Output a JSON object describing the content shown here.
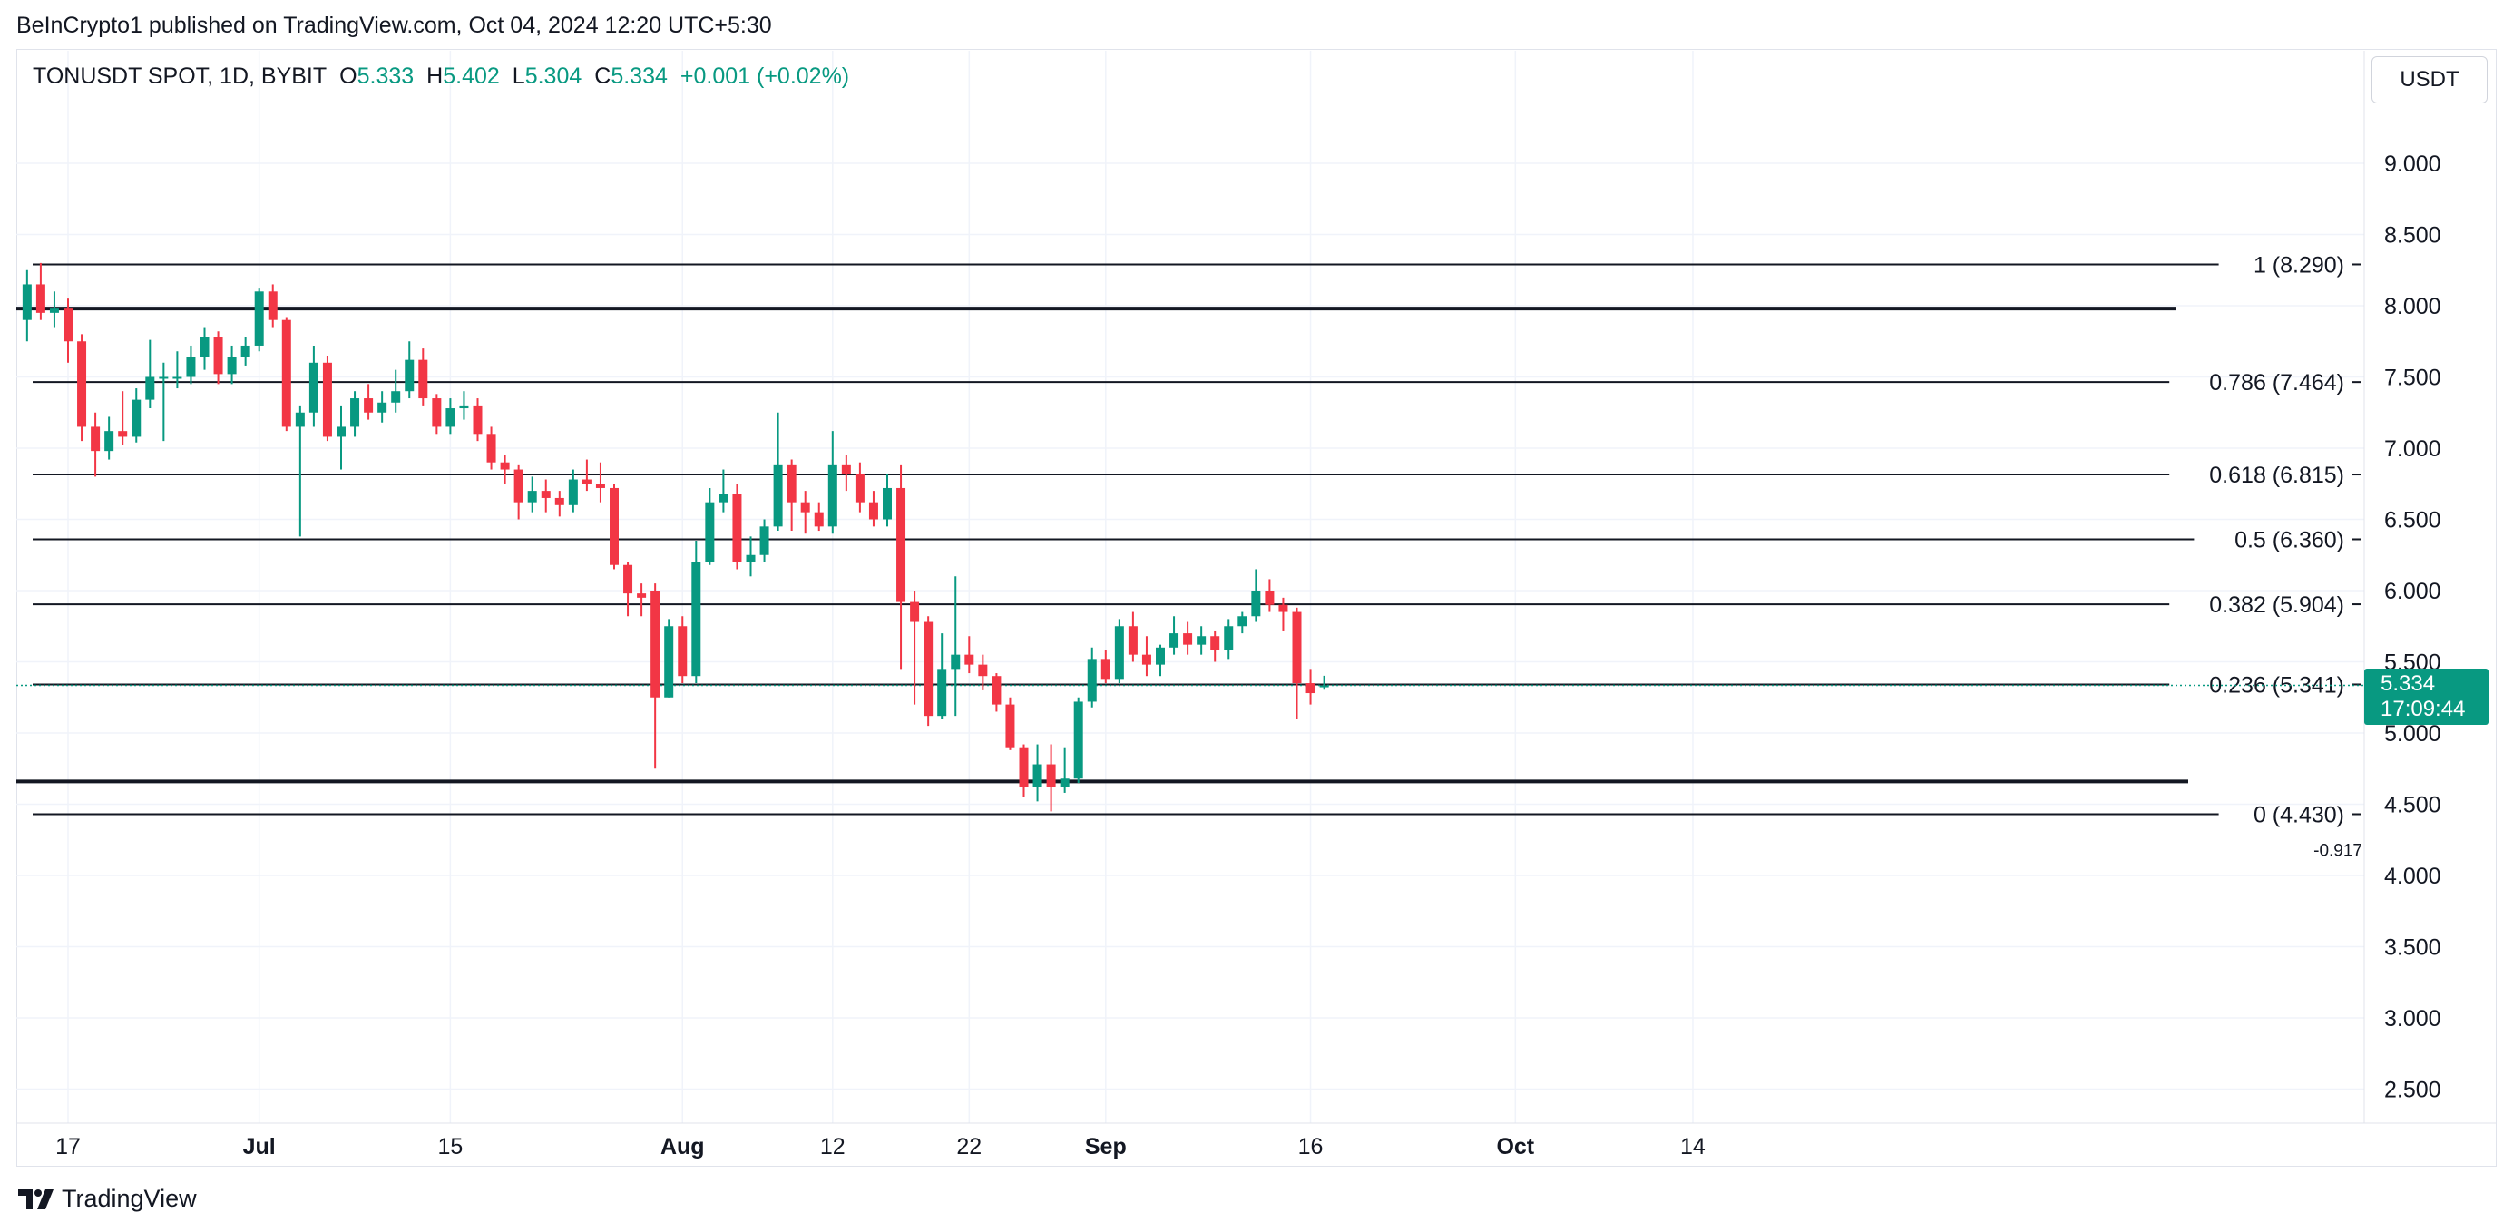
{
  "publisher": "BeInCrypto1 published on TradingView.com, Oct 04, 2024 12:20 UTC+5:30",
  "legend": {
    "symbol": "TONUSDT SPOT, 1D, BYBIT",
    "o_label": "O",
    "o": "5.333",
    "h_label": "H",
    "h": "5.402",
    "l_label": "L",
    "l": "5.304",
    "c_label": "C",
    "c": "5.334",
    "change": "+0.001 (+0.02%)"
  },
  "currency_button": "USDT",
  "last_price": {
    "price": "5.334",
    "countdown": "17:09:44"
  },
  "brand": "TradingView",
  "colors": {
    "up": "#089981",
    "down": "#f23645",
    "grid": "#f0f3fa",
    "line": "#131722"
  },
  "chart_data": {
    "type": "candlestick",
    "ylim": [
      2.2,
      9.6
    ],
    "y_ticks": [
      "9.000",
      "8.500",
      "8.000",
      "7.500",
      "7.000",
      "6.500",
      "6.000",
      "5.500",
      "5.000",
      "4.500",
      "4.000",
      "3.500",
      "3.000",
      "2.500"
    ],
    "x_ticks": [
      {
        "label": "17",
        "bold": false,
        "day": 0
      },
      {
        "label": "Jul",
        "bold": true,
        "day": 14
      },
      {
        "label": "15",
        "bold": false,
        "day": 28
      },
      {
        "label": "Aug",
        "bold": true,
        "day": 45
      },
      {
        "label": "12",
        "bold": false,
        "day": 56
      },
      {
        "label": "22",
        "bold": false,
        "day": 66
      },
      {
        "label": "Sep",
        "bold": true,
        "day": 76
      },
      {
        "label": "16",
        "bold": false,
        "day": 91
      },
      {
        "label": "Oct",
        "bold": true,
        "day": 106
      },
      {
        "label": "14",
        "bold": false,
        "day": 119
      }
    ],
    "fib_levels": [
      {
        "ratio": 1,
        "price": 8.29,
        "label": "1 (8.290)"
      },
      {
        "ratio": 0.786,
        "price": 7.464,
        "label": "0.786 (7.464)"
      },
      {
        "ratio": 0.618,
        "price": 6.815,
        "label": "0.618 (6.815)"
      },
      {
        "ratio": 0.5,
        "price": 6.36,
        "label": "0.5 (6.360)"
      },
      {
        "ratio": 0.382,
        "price": 5.904,
        "label": "0.382 (5.904)"
      },
      {
        "ratio": 0.236,
        "price": 5.341,
        "label": "0.236 (5.341)"
      },
      {
        "ratio": 0,
        "price": 4.43,
        "label": "0 (4.430)"
      }
    ],
    "extra_label": "-0.917",
    "horizontal_lines": [
      7.98,
      4.66
    ],
    "candles": [
      {
        "day": -3,
        "o": 7.9,
        "h": 8.25,
        "l": 7.75,
        "c": 8.15
      },
      {
        "day": -2,
        "o": 8.15,
        "h": 8.3,
        "l": 7.9,
        "c": 7.95
      },
      {
        "day": -1,
        "o": 7.95,
        "h": 8.1,
        "l": 7.85,
        "c": 7.98
      },
      {
        "day": 0,
        "o": 7.98,
        "h": 8.05,
        "l": 7.6,
        "c": 7.75
      },
      {
        "day": 1,
        "o": 7.75,
        "h": 7.8,
        "l": 7.05,
        "c": 7.15
      },
      {
        "day": 2,
        "o": 7.15,
        "h": 7.25,
        "l": 6.8,
        "c": 6.98
      },
      {
        "day": 3,
        "o": 6.98,
        "h": 7.22,
        "l": 6.92,
        "c": 7.12
      },
      {
        "day": 4,
        "o": 7.12,
        "h": 7.4,
        "l": 7.02,
        "c": 7.08
      },
      {
        "day": 5,
        "o": 7.08,
        "h": 7.42,
        "l": 7.04,
        "c": 7.34
      },
      {
        "day": 6,
        "o": 7.34,
        "h": 7.76,
        "l": 7.28,
        "c": 7.5
      },
      {
        "day": 7,
        "o": 7.5,
        "h": 7.6,
        "l": 7.05,
        "c": 7.5
      },
      {
        "day": 8,
        "o": 7.5,
        "h": 7.68,
        "l": 7.42,
        "c": 7.5
      },
      {
        "day": 9,
        "o": 7.5,
        "h": 7.72,
        "l": 7.45,
        "c": 7.64
      },
      {
        "day": 10,
        "o": 7.64,
        "h": 7.85,
        "l": 7.55,
        "c": 7.78
      },
      {
        "day": 11,
        "o": 7.78,
        "h": 7.82,
        "l": 7.45,
        "c": 7.52
      },
      {
        "day": 12,
        "o": 7.52,
        "h": 7.72,
        "l": 7.45,
        "c": 7.64
      },
      {
        "day": 13,
        "o": 7.64,
        "h": 7.78,
        "l": 7.58,
        "c": 7.72
      },
      {
        "day": 14,
        "o": 7.72,
        "h": 8.12,
        "l": 7.68,
        "c": 8.1
      },
      {
        "day": 15,
        "o": 8.1,
        "h": 8.15,
        "l": 7.85,
        "c": 7.9
      },
      {
        "day": 16,
        "o": 7.9,
        "h": 7.92,
        "l": 7.12,
        "c": 7.15
      },
      {
        "day": 17,
        "o": 7.15,
        "h": 7.3,
        "l": 6.38,
        "c": 7.25
      },
      {
        "day": 18,
        "o": 7.25,
        "h": 7.72,
        "l": 7.15,
        "c": 7.6
      },
      {
        "day": 19,
        "o": 7.6,
        "h": 7.65,
        "l": 7.05,
        "c": 7.08
      },
      {
        "day": 20,
        "o": 7.08,
        "h": 7.3,
        "l": 6.85,
        "c": 7.15
      },
      {
        "day": 21,
        "o": 7.15,
        "h": 7.4,
        "l": 7.08,
        "c": 7.35
      },
      {
        "day": 22,
        "o": 7.35,
        "h": 7.45,
        "l": 7.2,
        "c": 7.25
      },
      {
        "day": 23,
        "o": 7.25,
        "h": 7.4,
        "l": 7.18,
        "c": 7.32
      },
      {
        "day": 24,
        "o": 7.32,
        "h": 7.55,
        "l": 7.25,
        "c": 7.4
      },
      {
        "day": 25,
        "o": 7.4,
        "h": 7.75,
        "l": 7.35,
        "c": 7.62
      },
      {
        "day": 26,
        "o": 7.62,
        "h": 7.7,
        "l": 7.3,
        "c": 7.35
      },
      {
        "day": 27,
        "o": 7.35,
        "h": 7.38,
        "l": 7.1,
        "c": 7.15
      },
      {
        "day": 28,
        "o": 7.15,
        "h": 7.35,
        "l": 7.1,
        "c": 7.28
      },
      {
        "day": 29,
        "o": 7.28,
        "h": 7.4,
        "l": 7.2,
        "c": 7.3
      },
      {
        "day": 30,
        "o": 7.3,
        "h": 7.35,
        "l": 7.05,
        "c": 7.1
      },
      {
        "day": 31,
        "o": 7.1,
        "h": 7.15,
        "l": 6.85,
        "c": 6.9
      },
      {
        "day": 32,
        "o": 6.9,
        "h": 6.95,
        "l": 6.75,
        "c": 6.85
      },
      {
        "day": 33,
        "o": 6.85,
        "h": 6.88,
        "l": 6.5,
        "c": 6.62
      },
      {
        "day": 34,
        "o": 6.62,
        "h": 6.8,
        "l": 6.55,
        "c": 6.7
      },
      {
        "day": 35,
        "o": 6.7,
        "h": 6.78,
        "l": 6.55,
        "c": 6.65
      },
      {
        "day": 36,
        "o": 6.65,
        "h": 6.7,
        "l": 6.52,
        "c": 6.6
      },
      {
        "day": 37,
        "o": 6.6,
        "h": 6.85,
        "l": 6.55,
        "c": 6.78
      },
      {
        "day": 38,
        "o": 6.78,
        "h": 6.92,
        "l": 6.7,
        "c": 6.75
      },
      {
        "day": 39,
        "o": 6.75,
        "h": 6.9,
        "l": 6.62,
        "c": 6.72
      },
      {
        "day": 40,
        "o": 6.72,
        "h": 6.75,
        "l": 6.15,
        "c": 6.18
      },
      {
        "day": 41,
        "o": 6.18,
        "h": 6.2,
        "l": 5.82,
        "c": 5.98
      },
      {
        "day": 42,
        "o": 5.98,
        "h": 6.05,
        "l": 5.82,
        "c": 5.95
      },
      {
        "day": 43,
        "o": 6.0,
        "h": 6.05,
        "l": 4.75,
        "c": 5.25
      },
      {
        "day": 44,
        "o": 5.25,
        "h": 5.8,
        "l": 5.25,
        "c": 5.75
      },
      {
        "day": 45,
        "o": 5.75,
        "h": 5.82,
        "l": 5.35,
        "c": 5.4
      },
      {
        "day": 46,
        "o": 5.4,
        "h": 6.35,
        "l": 5.35,
        "c": 6.2
      },
      {
        "day": 47,
        "o": 6.2,
        "h": 6.72,
        "l": 6.18,
        "c": 6.62
      },
      {
        "day": 48,
        "o": 6.62,
        "h": 6.85,
        "l": 6.55,
        "c": 6.68
      },
      {
        "day": 49,
        "o": 6.68,
        "h": 6.75,
        "l": 6.15,
        "c": 6.2
      },
      {
        "day": 50,
        "o": 6.2,
        "h": 6.38,
        "l": 6.1,
        "c": 6.25
      },
      {
        "day": 51,
        "o": 6.25,
        "h": 6.5,
        "l": 6.2,
        "c": 6.45
      },
      {
        "day": 52,
        "o": 6.45,
        "h": 7.25,
        "l": 6.42,
        "c": 6.88
      },
      {
        "day": 53,
        "o": 6.88,
        "h": 6.92,
        "l": 6.42,
        "c": 6.62
      },
      {
        "day": 54,
        "o": 6.62,
        "h": 6.7,
        "l": 6.4,
        "c": 6.55
      },
      {
        "day": 55,
        "o": 6.55,
        "h": 6.62,
        "l": 6.42,
        "c": 6.45
      },
      {
        "day": 56,
        "o": 6.45,
        "h": 7.12,
        "l": 6.4,
        "c": 6.88
      },
      {
        "day": 57,
        "o": 6.88,
        "h": 6.95,
        "l": 6.7,
        "c": 6.82
      },
      {
        "day": 58,
        "o": 6.82,
        "h": 6.9,
        "l": 6.55,
        "c": 6.62
      },
      {
        "day": 59,
        "o": 6.62,
        "h": 6.7,
        "l": 6.45,
        "c": 6.5
      },
      {
        "day": 60,
        "o": 6.5,
        "h": 6.82,
        "l": 6.45,
        "c": 6.72
      },
      {
        "day": 61,
        "o": 6.72,
        "h": 6.88,
        "l": 5.45,
        "c": 5.92
      },
      {
        "day": 62,
        "o": 5.92,
        "h": 6.0,
        "l": 5.2,
        "c": 5.78
      },
      {
        "day": 63,
        "o": 5.78,
        "h": 5.82,
        "l": 5.05,
        "c": 5.12
      },
      {
        "day": 64,
        "o": 5.12,
        "h": 5.7,
        "l": 5.1,
        "c": 5.45
      },
      {
        "day": 65,
        "o": 5.45,
        "h": 6.1,
        "l": 5.12,
        "c": 5.55
      },
      {
        "day": 66,
        "o": 5.55,
        "h": 5.68,
        "l": 5.42,
        "c": 5.48
      },
      {
        "day": 67,
        "o": 5.48,
        "h": 5.55,
        "l": 5.3,
        "c": 5.4
      },
      {
        "day": 68,
        "o": 5.4,
        "h": 5.42,
        "l": 5.15,
        "c": 5.2
      },
      {
        "day": 69,
        "o": 5.2,
        "h": 5.25,
        "l": 4.88,
        "c": 4.9
      },
      {
        "day": 70,
        "o": 4.9,
        "h": 4.92,
        "l": 4.55,
        "c": 4.62
      },
      {
        "day": 71,
        "o": 4.62,
        "h": 4.92,
        "l": 4.52,
        "c": 4.78
      },
      {
        "day": 72,
        "o": 4.78,
        "h": 4.92,
        "l": 4.45,
        "c": 4.62
      },
      {
        "day": 73,
        "o": 4.62,
        "h": 4.9,
        "l": 4.58,
        "c": 4.68
      },
      {
        "day": 74,
        "o": 4.68,
        "h": 5.25,
        "l": 4.65,
        "c": 5.22
      },
      {
        "day": 75,
        "o": 5.22,
        "h": 5.6,
        "l": 5.18,
        "c": 5.52
      },
      {
        "day": 76,
        "o": 5.52,
        "h": 5.58,
        "l": 5.35,
        "c": 5.38
      },
      {
        "day": 77,
        "o": 5.38,
        "h": 5.8,
        "l": 5.35,
        "c": 5.75
      },
      {
        "day": 78,
        "o": 5.75,
        "h": 5.85,
        "l": 5.5,
        "c": 5.55
      },
      {
        "day": 79,
        "o": 5.55,
        "h": 5.68,
        "l": 5.4,
        "c": 5.48
      },
      {
        "day": 80,
        "o": 5.48,
        "h": 5.62,
        "l": 5.4,
        "c": 5.6
      },
      {
        "day": 81,
        "o": 5.6,
        "h": 5.82,
        "l": 5.55,
        "c": 5.7
      },
      {
        "day": 82,
        "o": 5.7,
        "h": 5.78,
        "l": 5.55,
        "c": 5.62
      },
      {
        "day": 83,
        "o": 5.62,
        "h": 5.75,
        "l": 5.55,
        "c": 5.68
      },
      {
        "day": 84,
        "o": 5.68,
        "h": 5.72,
        "l": 5.5,
        "c": 5.58
      },
      {
        "day": 85,
        "o": 5.58,
        "h": 5.8,
        "l": 5.52,
        "c": 5.75
      },
      {
        "day": 86,
        "o": 5.75,
        "h": 5.85,
        "l": 5.7,
        "c": 5.82
      },
      {
        "day": 87,
        "o": 5.82,
        "h": 6.15,
        "l": 5.78,
        "c": 6.0
      },
      {
        "day": 88,
        "o": 6.0,
        "h": 6.08,
        "l": 5.85,
        "c": 5.9
      },
      {
        "day": 89,
        "o": 5.9,
        "h": 5.95,
        "l": 5.72,
        "c": 5.85
      },
      {
        "day": 90,
        "o": 5.85,
        "h": 5.88,
        "l": 5.1,
        "c": 5.35
      },
      {
        "day": 91,
        "o": 5.35,
        "h": 5.45,
        "l": 5.2,
        "c": 5.28
      },
      {
        "day": 92,
        "o": 5.333,
        "h": 5.402,
        "l": 5.304,
        "c": 5.334
      }
    ]
  }
}
